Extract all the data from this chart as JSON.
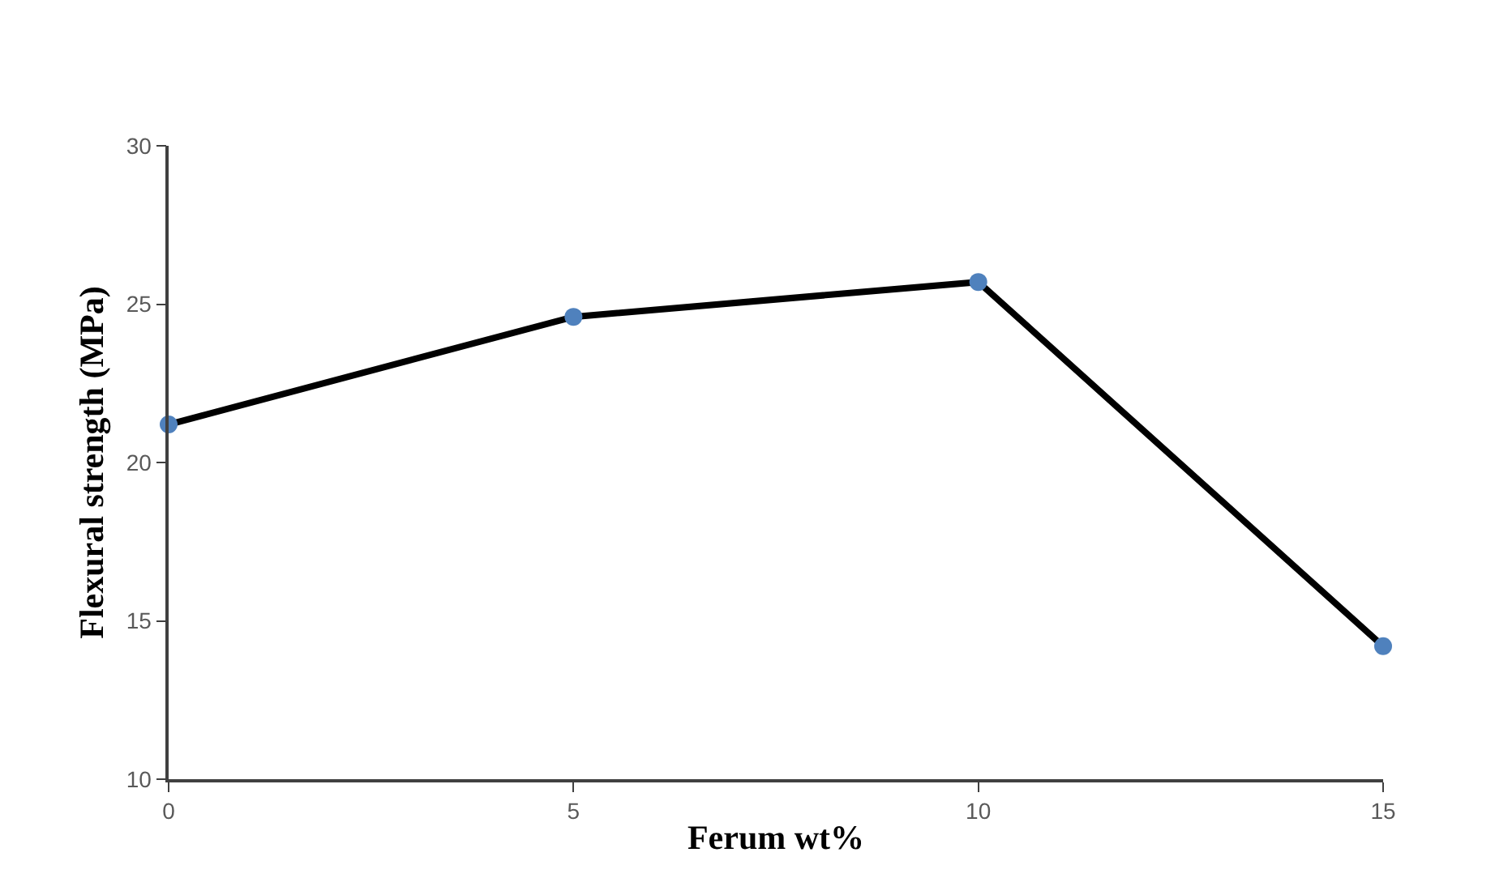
{
  "chart_data": {
    "type": "line",
    "xlabel": "Ferum wt%",
    "ylabel": "Flexural strength (MPa)",
    "x": [
      0,
      5,
      10,
      15
    ],
    "series": [
      {
        "color": "#000000",
        "colors": [
          "#4f81bd",
          "#4f81bd",
          "#4f81bd",
          "#4f81bd"
        ],
        "values": [
          21.2,
          24.6,
          25.7,
          14.2
        ]
      }
    ],
    "marker": "circle",
    "line_style": "solid",
    "xlim": [
      0,
      15
    ],
    "xticks": [
      0,
      5,
      10,
      15
    ],
    "ylim": [
      10,
      30
    ],
    "yticks": [
      10,
      15,
      20,
      25,
      30
    ]
  }
}
